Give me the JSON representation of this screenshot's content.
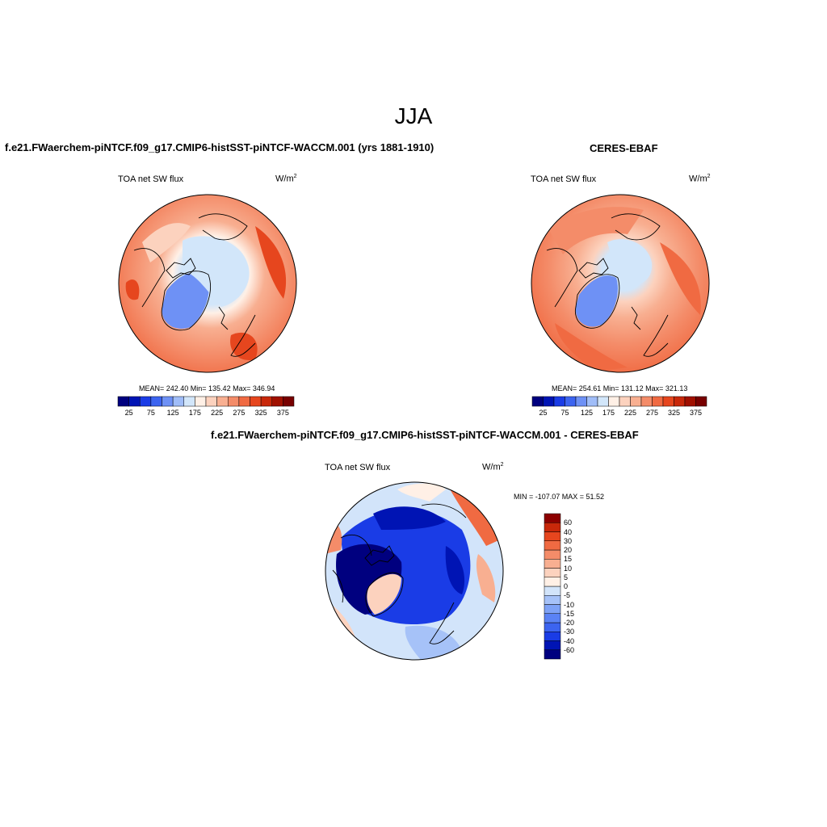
{
  "figure": {
    "title": "JJA"
  },
  "panels": [
    {
      "title": "f.e21.FWaerchem-piNTCF.f09_g17.CMIP6-histSST-piNTCF-WACCM.001 (yrs 1881-1910)",
      "variable": "TOA net SW flux",
      "units": "W/m",
      "units_sup": "2",
      "stats": "MEAN= 242.40  Min= 135.42  Max= 346.94"
    },
    {
      "title": "CERES-EBAF",
      "variable": "TOA net SW flux",
      "units": "W/m",
      "units_sup": "2",
      "stats": "MEAN= 254.61  Min= 131.12  Max= 321.13"
    },
    {
      "title": "f.e21.FWaerchem-piNTCF.f09_g17.CMIP6-histSST-piNTCF-WACCM.001 - CERES-EBAF",
      "variable": "TOA net SW flux",
      "units": "W/m",
      "units_sup": "2",
      "stats": "MIN = -107.07 MAX =  51.52"
    }
  ],
  "colorbar_abs": {
    "colors": [
      "#00007f",
      "#0014b4",
      "#1a3ce6",
      "#3c64f0",
      "#6e91f5",
      "#a0bdf8",
      "#d2e6fa",
      "#fff0e6",
      "#fcd2be",
      "#f8af91",
      "#f48c69",
      "#f06a42",
      "#e6461e",
      "#c8280a",
      "#a01000",
      "#780000"
    ],
    "tick_labels": [
      "25",
      "75",
      "125",
      "175",
      "225",
      "275",
      "325",
      "375"
    ]
  },
  "colorbar_diff": {
    "colors": [
      "#00007f",
      "#0014b4",
      "#1a3ce6",
      "#3c64f0",
      "#5a82f5",
      "#7ea2f6",
      "#a6c2f8",
      "#d2e4fa",
      "#fff0e6",
      "#fcd2be",
      "#f8af91",
      "#f48c69",
      "#f06a42",
      "#e6461e",
      "#c8280a",
      "#8c0000"
    ],
    "tick_labels": [
      "60",
      "40",
      "30",
      "20",
      "15",
      "10",
      "5",
      "0",
      "-5",
      "-10",
      "-15",
      "-20",
      "-30",
      "-40",
      "-60"
    ]
  }
}
